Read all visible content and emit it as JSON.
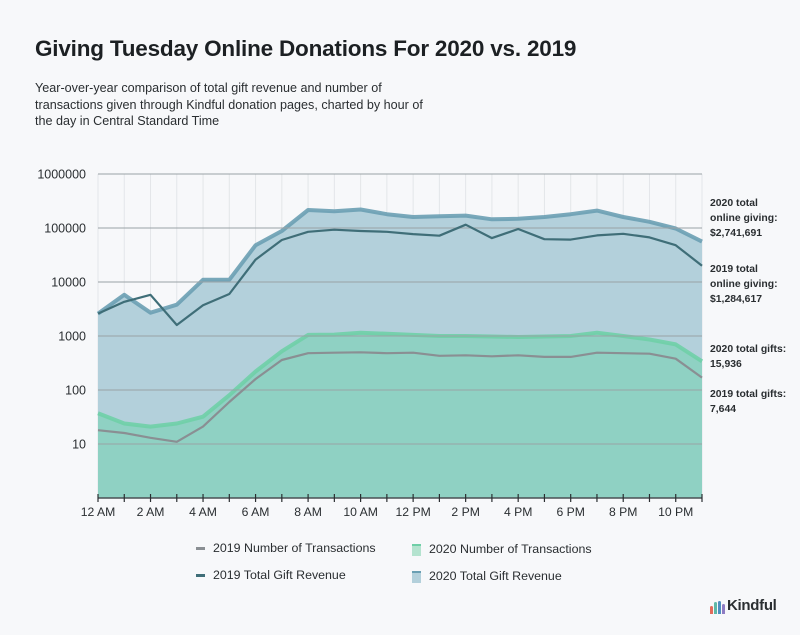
{
  "chart_data": {
    "type": "area",
    "title": "Giving Tuesday Online Donations For 2020 vs. 2019",
    "subtitle": "Year-over-year comparison of total gift revenue and number of transactions given through Kindful donation pages, charted by hour of the day in Central Standard Time",
    "xlabel": "",
    "ylabel": "",
    "yscale": "log",
    "ylim": [
      1,
      1000000
    ],
    "yticks": [
      "10",
      "100",
      "1000",
      "10000",
      "100000",
      "1000000"
    ],
    "ytick_values": [
      10,
      100,
      1000,
      10000,
      100000,
      1000000
    ],
    "x": [
      "12 AM",
      "1 AM",
      "2 AM",
      "3 AM",
      "4 AM",
      "5 AM",
      "6 AM",
      "7 AM",
      "8 AM",
      "9 AM",
      "10 AM",
      "11 AM",
      "12 PM",
      "1 PM",
      "2 PM",
      "3 PM",
      "4 PM",
      "5 PM",
      "6 PM",
      "7 PM",
      "8 PM",
      "9 PM",
      "10 PM",
      "11 PM"
    ],
    "xtick_labels": [
      "12 AM",
      "2 AM",
      "4 AM",
      "6 AM",
      "8 AM",
      "10 AM",
      "12 PM",
      "2 PM",
      "4 PM",
      "6 PM",
      "8 PM",
      "10 PM"
    ],
    "grid": true,
    "legend_position": "bottom",
    "series": [
      {
        "name": "2020 Total Gift Revenue",
        "kind": "area",
        "color": "#6a9fb3",
        "fill": "#b3d0db",
        "values": [
          2600,
          5800,
          2700,
          3800,
          11000,
          11000,
          48000,
          88000,
          215000,
          205000,
          220000,
          180000,
          160000,
          165000,
          170000,
          145000,
          148000,
          160000,
          180000,
          210000,
          160000,
          130000,
          98000,
          56000
        ]
      },
      {
        "name": "2019 Total Gift Revenue",
        "kind": "line",
        "color": "#3f6e78",
        "values": [
          2600,
          4300,
          5800,
          1600,
          3700,
          6000,
          26000,
          60000,
          85000,
          93000,
          88000,
          85000,
          77000,
          72000,
          115000,
          65000,
          96000,
          62000,
          61000,
          73000,
          78000,
          67000,
          48000,
          20000
        ]
      },
      {
        "name": "2020 Number of Transactions",
        "kind": "area",
        "color": "#6fcfa7",
        "fill": "#8fd1c3",
        "values": [
          37,
          24,
          21,
          24,
          32,
          80,
          220,
          520,
          1050,
          1060,
          1150,
          1100,
          1050,
          1000,
          1000,
          980,
          960,
          980,
          1000,
          1150,
          1000,
          860,
          700,
          340
        ]
      },
      {
        "name": "2019 Number of Transactions",
        "kind": "line",
        "color": "#8a8f93",
        "values": [
          18,
          16,
          13,
          11,
          21,
          60,
          160,
          360,
          480,
          490,
          500,
          480,
          490,
          430,
          440,
          420,
          440,
          410,
          410,
          490,
          480,
          470,
          380,
          170
        ]
      }
    ],
    "annotations": [
      {
        "label": "2020 total online giving:",
        "value": "$2,741,691"
      },
      {
        "label": "2019 total online giving:",
        "value": "$1,284,617"
      },
      {
        "label": "2020 total gifts:",
        "value": "15,936"
      },
      {
        "label": "2019 total gifts:",
        "value": "7,644"
      }
    ]
  },
  "header": {
    "title": "Giving Tuesday Online Donations For 2020 vs. 2019",
    "subtitle": "Year-over-year comparison of total gift revenue and number of transactions given through Kindful donation pages, charted by hour of the day in Central Standard Time"
  },
  "annotations": {
    "rev2020_l1": "2020 total",
    "rev2020_l2": "online giving:",
    "rev2020_val": "$2,741,691",
    "rev2019_l1": "2019 total",
    "rev2019_l2": "online giving:",
    "rev2019_val": "$1,284,617",
    "gifts2020_l1": "2020 total gifts:",
    "gifts2020_val": "15,936",
    "gifts2019_l1": "2019 total gifts:",
    "gifts2019_val": "7,644"
  },
  "legend": {
    "tx2019": "2019 Number of Transactions",
    "tx2020": "2020 Number of Transactions",
    "rev2019": "2019 Total Gift Revenue",
    "rev2020": "2020 Total Gift Revenue"
  },
  "brand": {
    "name": "Kindful",
    "logo_colors": [
      "#e36b5c",
      "#5fb8a7",
      "#4f8fc0",
      "#8e7cc3"
    ]
  }
}
